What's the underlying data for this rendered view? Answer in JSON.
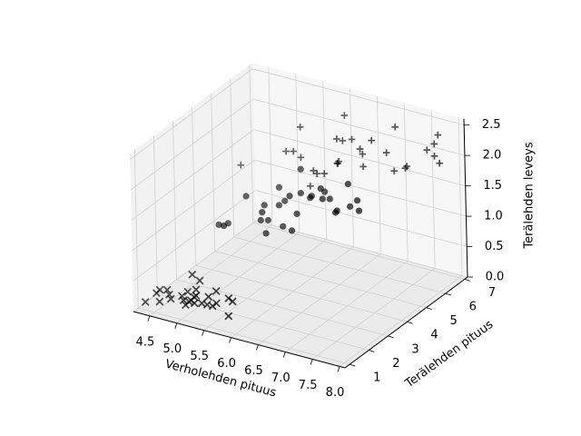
{
  "chart_data": {
    "type": "scatter3d",
    "xlabel": "Verholehden pituus",
    "ylabel": "Terälehden pituus",
    "zlabel": "Terälehden leveys",
    "xlim": [
      4.2,
      8.1
    ],
    "ylim": [
      0.75,
      7.15
    ],
    "zlim": [
      0,
      2.6
    ],
    "xticks": [
      4.5,
      {
        "value": 5,
        "label": "5.0"
      },
      5.5,
      {
        "value": 6,
        "label": "6.0"
      },
      6.5,
      {
        "value": 7,
        "label": "7.0"
      },
      7.5,
      {
        "value": 8,
        "label": "8.0"
      }
    ],
    "yticks": [
      1,
      2,
      3,
      4,
      5,
      6,
      7
    ],
    "zticks": [
      {
        "value": 0,
        "label": "0.0"
      },
      0.5,
      {
        "value": 1,
        "label": "1.0"
      },
      1.5,
      {
        "value": 2,
        "label": "2.0"
      },
      2.5
    ],
    "grid": true,
    "series": [
      {
        "marker": "x",
        "color": "#000000",
        "x": [
          5.1,
          4.9,
          4.7,
          4.6,
          5.0,
          5.4,
          4.6,
          5.0,
          4.4,
          4.9,
          5.4,
          4.8,
          4.3,
          5.8,
          5.7,
          5.4,
          5.1,
          5.7,
          5.1,
          5.4,
          5.1,
          4.6,
          5.1,
          4.8,
          5.0,
          5.2,
          4.5,
          5.3
        ],
        "y": [
          1.4,
          1.4,
          1.3,
          1.5,
          1.4,
          1.7,
          1.4,
          1.5,
          1.4,
          1.5,
          1.5,
          1.6,
          1.1,
          1.2,
          1.5,
          1.3,
          1.4,
          1.7,
          1.5,
          1.7,
          1.5,
          1.0,
          1.7,
          1.9,
          1.6,
          1.5,
          1.3,
          1.5
        ],
        "z": [
          0.2,
          0.2,
          0.2,
          0.2,
          0.2,
          0.4,
          0.3,
          0.2,
          0.2,
          0.1,
          0.2,
          0.2,
          0.1,
          0.2,
          0.4,
          0.4,
          0.3,
          0.3,
          0.3,
          0.2,
          0.4,
          0.2,
          0.5,
          0.2,
          0.6,
          0.2,
          0.3,
          0.2
        ]
      },
      {
        "marker": "o",
        "color": "#000000",
        "x": [
          7.0,
          6.4,
          6.9,
          5.5,
          6.5,
          5.7,
          6.3,
          4.9,
          6.6,
          5.2,
          5.0,
          5.9,
          6.0,
          6.1,
          5.6,
          6.7,
          5.6,
          5.8,
          6.2,
          5.6,
          5.9,
          6.1,
          6.3,
          6.8,
          6.7,
          6.0,
          5.7,
          5.5,
          5.1,
          5.7
        ],
        "y": [
          4.7,
          4.5,
          4.9,
          4.0,
          4.6,
          4.5,
          4.7,
          3.3,
          4.6,
          3.9,
          3.5,
          4.2,
          4.0,
          4.7,
          3.6,
          4.4,
          4.5,
          4.1,
          4.5,
          3.9,
          4.8,
          4.0,
          4.9,
          4.8,
          5.0,
          4.5,
          3.5,
          3.8,
          3.0,
          4.2
        ],
        "z": [
          1.4,
          1.5,
          1.5,
          1.3,
          1.5,
          1.3,
          1.6,
          1.0,
          1.3,
          1.4,
          1.0,
          1.5,
          1.0,
          1.4,
          1.3,
          1.4,
          1.5,
          1.0,
          1.5,
          1.1,
          1.8,
          1.3,
          1.5,
          1.4,
          1.7,
          1.5,
          1.0,
          1.1,
          1.1,
          1.3
        ]
      },
      {
        "marker": "+",
        "color": "#000000",
        "x": [
          6.3,
          5.8,
          7.1,
          6.3,
          6.5,
          7.6,
          4.9,
          7.3,
          6.7,
          7.2,
          6.5,
          6.4,
          6.8,
          5.7,
          5.8,
          6.4,
          7.7,
          7.7,
          6.0,
          6.9,
          5.6,
          7.7,
          6.3,
          7.2,
          6.2,
          6.1,
          7.9,
          6.4,
          7.4,
          6.9
        ],
        "y": [
          6.0,
          5.1,
          5.9,
          5.6,
          5.8,
          6.6,
          4.5,
          6.3,
          5.8,
          6.1,
          5.1,
          5.3,
          5.5,
          5.0,
          5.1,
          5.3,
          6.7,
          6.9,
          5.0,
          5.7,
          4.9,
          6.7,
          4.9,
          6.0,
          4.8,
          4.9,
          6.4,
          5.6,
          6.1,
          5.1
        ],
        "z": [
          2.5,
          1.9,
          2.1,
          1.8,
          2.2,
          2.1,
          1.7,
          1.8,
          1.8,
          2.5,
          2.0,
          1.9,
          2.1,
          2.0,
          2.4,
          2.3,
          2.2,
          2.3,
          1.5,
          2.3,
          2.0,
          2.0,
          1.8,
          1.8,
          1.8,
          1.8,
          2.0,
          2.2,
          1.9,
          2.3
        ]
      }
    ]
  }
}
